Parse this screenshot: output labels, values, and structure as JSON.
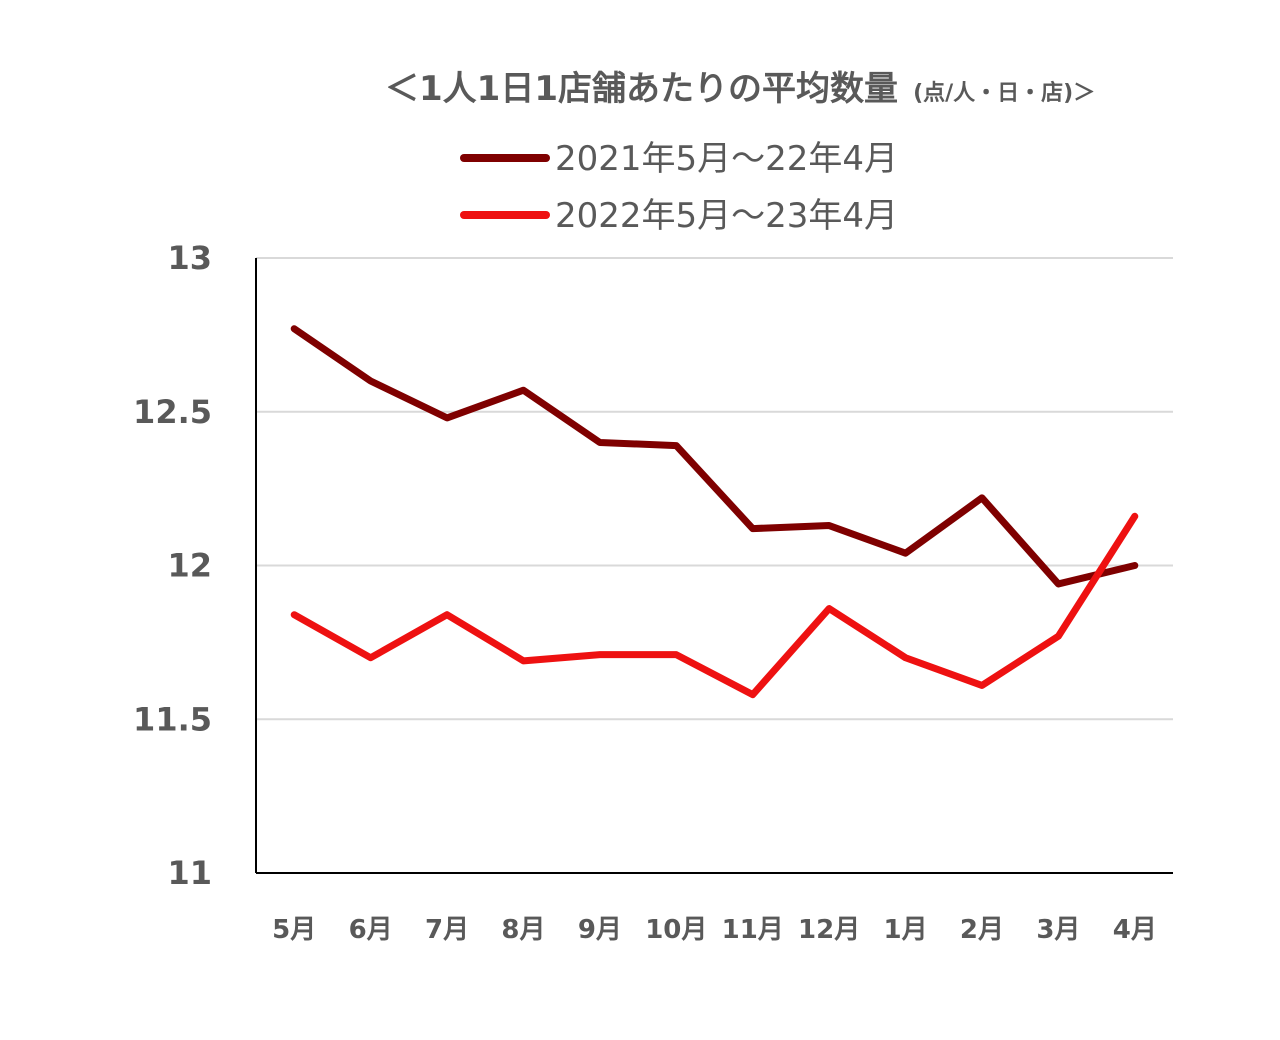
{
  "chart_data": {
    "type": "line",
    "title": "＜1人1日1店舗あたりの平均数量",
    "title_unit": "(点/人・日・店)＞",
    "categories": [
      "5月",
      "6月",
      "7月",
      "8月",
      "9月",
      "10月",
      "11月",
      "12月",
      "1月",
      "2月",
      "3月",
      "4月"
    ],
    "ylim": [
      11,
      13
    ],
    "yticks": [
      11,
      11.5,
      12,
      12.5,
      13
    ],
    "ytick_labels": [
      "11",
      "11.5",
      "12",
      "12.5",
      "13"
    ],
    "grid": true,
    "legend_position": "top",
    "series": [
      {
        "name": "2021年5月～22年4月",
        "color": "#7f0000",
        "values": [
          12.77,
          12.6,
          12.48,
          12.57,
          12.4,
          12.39,
          12.12,
          12.13,
          12.04,
          12.22,
          11.94,
          12.0
        ]
      },
      {
        "name": "2022年5月～23年4月",
        "color": "#ee1111",
        "values": [
          11.84,
          11.7,
          11.84,
          11.69,
          11.71,
          11.71,
          11.58,
          11.86,
          11.7,
          11.61,
          11.77,
          12.16
        ]
      }
    ]
  }
}
